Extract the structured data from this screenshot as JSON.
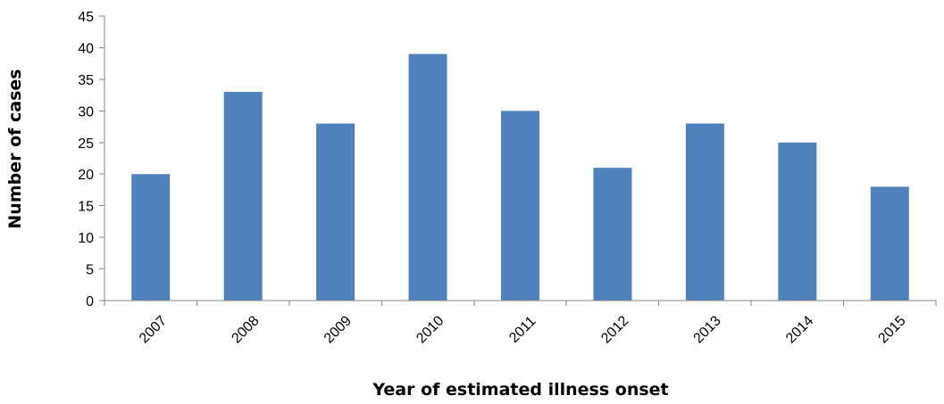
{
  "chart_data": {
    "type": "bar",
    "title": "",
    "xlabel": "Year of estimated illness onset",
    "ylabel": "Number of cases",
    "categories": [
      "2007",
      "2008",
      "2009",
      "2010",
      "2011",
      "2012",
      "2013",
      "2014",
      "2015"
    ],
    "values": [
      20,
      33,
      28,
      39,
      30,
      21,
      28,
      25,
      18
    ],
    "ylim": [
      0,
      45
    ],
    "yticks": [
      0,
      5,
      10,
      15,
      20,
      25,
      30,
      35,
      40,
      45
    ],
    "grid": false,
    "legend": "none",
    "bar_color": "#4F81BD",
    "axis_color": "#868686"
  }
}
